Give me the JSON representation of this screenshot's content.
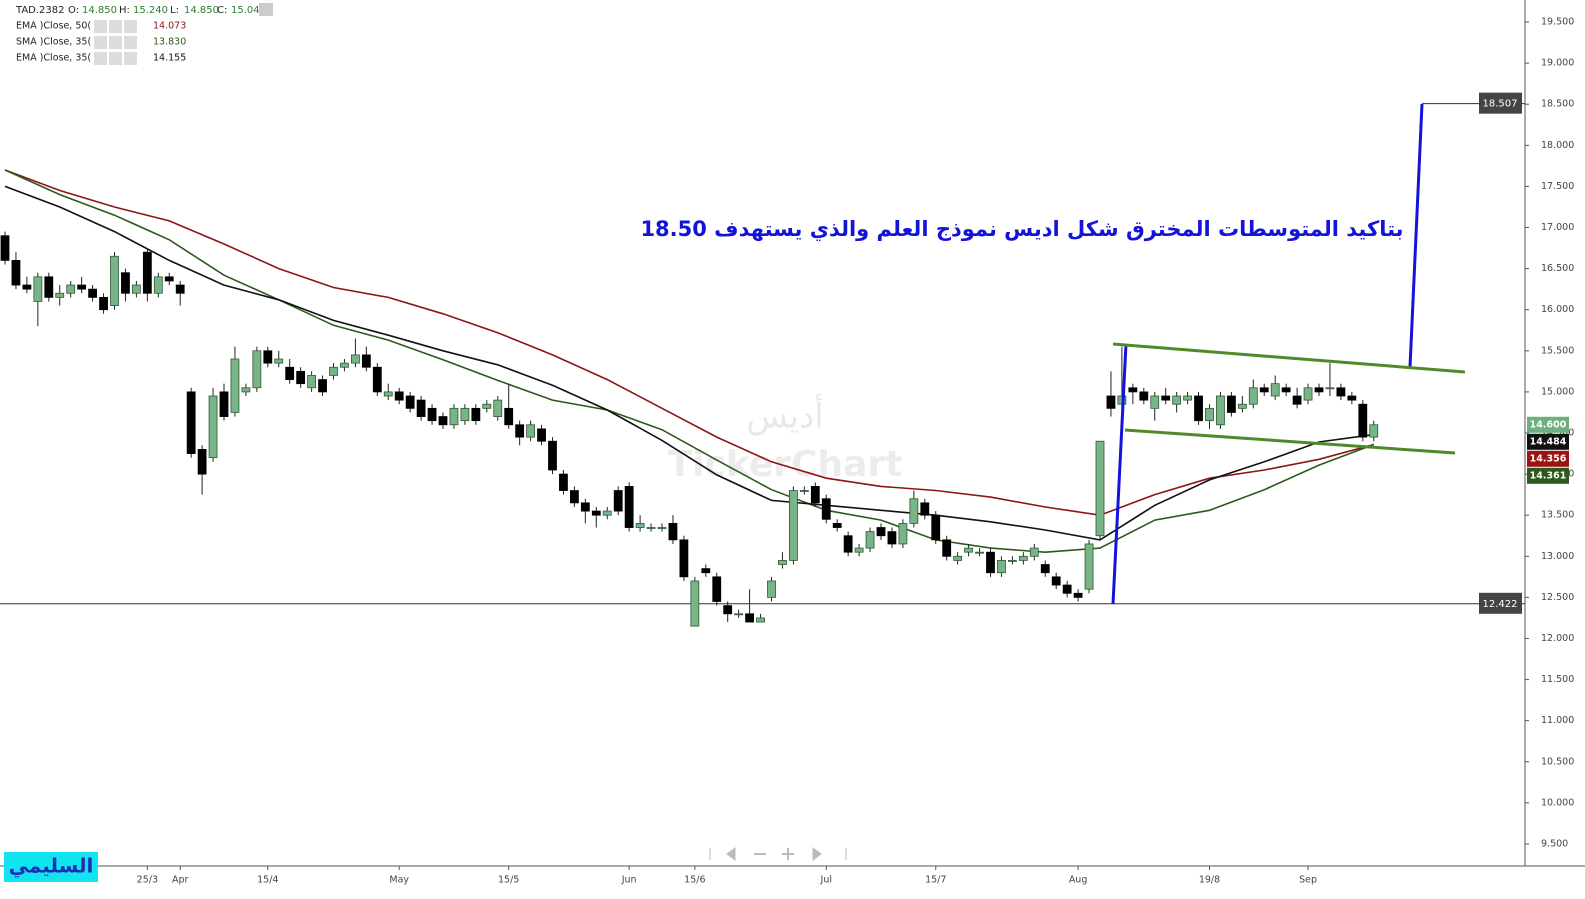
{
  "header": {
    "symbol": "TAD.2382",
    "fields": [
      {
        "label": "O:",
        "value": "14.850"
      },
      {
        "label": "H:",
        "value": "15.240"
      },
      {
        "label": "L:",
        "value": "14.850"
      },
      {
        "label": "C:",
        "value": "15.040"
      }
    ]
  },
  "chart_data": {
    "type": "candlestick",
    "annotation": "بتاكيد المتوسطات المخترق شكل اديس نموذج العلم والذي يستهدف 18.50",
    "annotation_color": "#1414d8",
    "watermark": [
      "أديس",
      "TickerChart"
    ],
    "signature": "السليمي",
    "up_color": "#78b487",
    "down_color": "#000000",
    "categories": [
      null,
      null,
      null,
      null,
      null,
      null,
      null,
      null,
      null,
      null,
      null,
      null,
      null,
      "25/3",
      null,
      null,
      "Apr",
      null,
      null,
      null,
      null,
      null,
      null,
      null,
      "15/4",
      null,
      null,
      null,
      null,
      null,
      null,
      null,
      null,
      null,
      null,
      null,
      "May",
      null,
      null,
      null,
      null,
      null,
      null,
      null,
      null,
      null,
      "15/5",
      null,
      null,
      null,
      null,
      null,
      null,
      null,
      null,
      null,
      null,
      "Jun",
      null,
      null,
      null,
      null,
      null,
      "15/6",
      null,
      null,
      null,
      null,
      null,
      null,
      null,
      null,
      null,
      null,
      null,
      "Jul",
      null,
      null,
      null,
      null,
      null,
      null,
      null,
      null,
      null,
      "15/7",
      null,
      null,
      null,
      null,
      null,
      null,
      null,
      null,
      null,
      null,
      null,
      null,
      "Aug",
      null,
      null,
      null,
      null,
      null,
      null,
      null,
      null,
      null,
      null,
      null,
      "19/8",
      null,
      null,
      null,
      null,
      null,
      null,
      null,
      null,
      "Sep",
      null,
      null,
      null,
      null,
      null,
      null
    ],
    "open": [
      16.9,
      16.6,
      16.3,
      16.1,
      16.4,
      16.15,
      16.2,
      16.3,
      16.25,
      16.15,
      16.05,
      16.45,
      16.2,
      16.7,
      16.2,
      16.4,
      16.3,
      15.0,
      14.3,
      14.2,
      15.0,
      14.75,
      15.0,
      15.05,
      15.5,
      15.35,
      15.3,
      15.25,
      15.05,
      15.15,
      15.2,
      15.3,
      15.35,
      15.45,
      15.3,
      14.95,
      15.0,
      14.95,
      14.9,
      14.8,
      14.7,
      14.6,
      14.65,
      14.8,
      14.8,
      14.7,
      14.8,
      14.6,
      14.45,
      14.55,
      14.4,
      14.0,
      13.8,
      13.65,
      13.55,
      13.5,
      13.8,
      13.85,
      13.35,
      13.35,
      13.35,
      13.4,
      13.2,
      12.15,
      12.85,
      12.75,
      12.4,
      12.3,
      12.3,
      12.2,
      12.5,
      12.9,
      12.95,
      13.8,
      13.85,
      13.7,
      13.4,
      13.25,
      13.05,
      13.1,
      13.35,
      13.3,
      13.15,
      13.4,
      13.65,
      13.5,
      13.2,
      12.95,
      13.05,
      13.05,
      13.05,
      12.8,
      12.95,
      12.95,
      13.0,
      12.9,
      12.75,
      12.65,
      12.55,
      12.6,
      13.25,
      14.95,
      14.85,
      15.05,
      15.0,
      14.8,
      14.95,
      14.85,
      14.9,
      14.95,
      14.65,
      14.6,
      14.95,
      14.8,
      14.85,
      15.05,
      14.95,
      15.05,
      14.95,
      14.9,
      15.05,
      15.05,
      15.05,
      14.95,
      14.85,
      14.45
    ],
    "high": [
      16.95,
      16.7,
      16.4,
      16.45,
      16.45,
      16.3,
      16.35,
      16.4,
      16.3,
      16.2,
      16.7,
      16.5,
      16.35,
      16.75,
      16.45,
      16.45,
      16.35,
      15.05,
      14.35,
      15.05,
      15.1,
      15.55,
      15.1,
      15.55,
      15.55,
      15.5,
      15.4,
      15.3,
      15.25,
      15.2,
      15.35,
      15.4,
      15.65,
      15.55,
      15.35,
      15.1,
      15.05,
      15.0,
      14.95,
      14.85,
      14.75,
      14.85,
      14.85,
      14.85,
      14.9,
      14.95,
      15.1,
      14.65,
      14.65,
      14.6,
      14.45,
      14.05,
      13.85,
      13.7,
      13.6,
      13.6,
      13.85,
      13.9,
      13.5,
      13.4,
      13.4,
      13.5,
      13.25,
      12.75,
      12.9,
      12.8,
      12.45,
      12.35,
      12.6,
      12.3,
      12.75,
      13.05,
      13.85,
      13.85,
      13.9,
      13.75,
      13.45,
      13.3,
      13.15,
      13.35,
      13.4,
      13.35,
      13.45,
      13.8,
      13.7,
      13.55,
      13.25,
      13.05,
      13.15,
      13.1,
      13.1,
      13.0,
      13.0,
      13.05,
      13.15,
      12.95,
      12.8,
      12.7,
      12.6,
      13.2,
      14.4,
      15.25,
      15.55,
      15.1,
      15.05,
      15.0,
      15.05,
      15.0,
      15.0,
      15.0,
      14.85,
      15.0,
      15.0,
      14.95,
      15.15,
      15.1,
      15.2,
      15.1,
      15.05,
      15.1,
      15.1,
      15.35,
      15.1,
      15.0,
      14.9,
      14.65
    ],
    "low": [
      16.55,
      16.25,
      16.2,
      15.8,
      16.1,
      16.05,
      16.15,
      16.2,
      16.1,
      15.95,
      16.0,
      16.1,
      16.15,
      16.1,
      16.15,
      16.3,
      16.05,
      14.2,
      13.75,
      14.15,
      14.65,
      14.7,
      14.95,
      15.0,
      15.3,
      15.3,
      15.1,
      15.05,
      15.0,
      14.95,
      15.15,
      15.25,
      15.3,
      15.25,
      14.95,
      14.9,
      14.85,
      14.75,
      14.65,
      14.6,
      14.55,
      14.55,
      14.6,
      14.6,
      14.75,
      14.65,
      14.55,
      14.35,
      14.4,
      14.35,
      14.0,
      13.75,
      13.6,
      13.4,
      13.35,
      13.45,
      13.5,
      13.3,
      13.3,
      13.3,
      13.3,
      13.15,
      12.7,
      12.15,
      12.75,
      12.4,
      12.2,
      12.25,
      12.2,
      12.2,
      12.45,
      12.85,
      12.9,
      13.75,
      13.6,
      13.4,
      13.3,
      13.0,
      13.0,
      13.05,
      13.2,
      13.1,
      13.1,
      13.35,
      13.45,
      13.15,
      12.95,
      12.9,
      13.0,
      13.0,
      12.75,
      12.75,
      12.9,
      12.9,
      12.95,
      12.75,
      12.6,
      12.5,
      12.45,
      12.55,
      13.2,
      14.7,
      14.8,
      14.85,
      14.85,
      14.65,
      14.85,
      14.75,
      14.85,
      14.6,
      14.55,
      14.55,
      14.7,
      14.75,
      14.8,
      14.95,
      14.9,
      14.95,
      14.8,
      14.85,
      14.95,
      14.95,
      14.9,
      14.85,
      14.4,
      14.4
    ],
    "close": [
      16.6,
      16.3,
      16.25,
      16.4,
      16.15,
      16.2,
      16.3,
      16.25,
      16.15,
      16.0,
      16.65,
      16.2,
      16.3,
      16.2,
      16.4,
      16.35,
      16.2,
      14.25,
      14.0,
      14.95,
      14.7,
      15.4,
      15.05,
      15.5,
      15.35,
      15.4,
      15.15,
      15.1,
      15.2,
      15.0,
      15.3,
      15.35,
      15.45,
      15.3,
      15.0,
      15.0,
      14.9,
      14.8,
      14.7,
      14.65,
      14.6,
      14.8,
      14.8,
      14.65,
      14.85,
      14.9,
      14.6,
      14.45,
      14.6,
      14.4,
      14.05,
      13.8,
      13.65,
      13.55,
      13.5,
      13.55,
      13.55,
      13.35,
      13.4,
      13.35,
      13.35,
      13.2,
      12.75,
      12.7,
      12.8,
      12.45,
      12.3,
      12.3,
      12.2,
      12.25,
      12.7,
      12.95,
      13.8,
      13.8,
      13.65,
      13.45,
      13.35,
      13.05,
      13.1,
      13.3,
      13.25,
      13.15,
      13.4,
      13.7,
      13.5,
      13.2,
      13.0,
      13.0,
      13.1,
      13.05,
      12.8,
      12.95,
      12.95,
      13.0,
      13.1,
      12.8,
      12.65,
      12.55,
      12.5,
      13.15,
      14.4,
      14.8,
      14.95,
      15.0,
      14.9,
      14.95,
      14.9,
      14.95,
      14.95,
      14.65,
      14.8,
      14.95,
      14.75,
      14.85,
      15.05,
      15.0,
      15.1,
      15.0,
      14.85,
      15.05,
      15.0,
      15.05,
      14.95,
      14.9,
      14.45,
      14.6
    ],
    "series": [
      {
        "name": "EMA  )Close, 50(",
        "color": "#8b1616",
        "legend_value": "14.073",
        "x": [
          0,
          5,
          10,
          15,
          20,
          25,
          30,
          35,
          40,
          45,
          50,
          55,
          60,
          65,
          70,
          75,
          80,
          85,
          90,
          95,
          100,
          105,
          110,
          115,
          120,
          125
        ],
        "values": [
          17.7,
          17.45,
          17.25,
          17.08,
          16.8,
          16.5,
          16.27,
          16.15,
          15.95,
          15.72,
          15.45,
          15.15,
          14.8,
          14.45,
          14.15,
          13.95,
          13.85,
          13.8,
          13.72,
          13.6,
          13.5,
          13.75,
          13.95,
          14.05,
          14.18,
          14.36
        ]
      },
      {
        "name": "SMA  )Close, 35(",
        "color": "#2d5a1c",
        "legend_value": "13.830",
        "x": [
          0,
          5,
          10,
          15,
          20,
          25,
          30,
          35,
          40,
          45,
          50,
          55,
          60,
          65,
          70,
          75,
          80,
          85,
          90,
          95,
          100,
          105,
          110,
          115,
          120,
          125
        ],
        "values": [
          17.7,
          17.4,
          17.15,
          16.85,
          16.42,
          16.12,
          15.81,
          15.63,
          15.39,
          15.14,
          14.9,
          14.78,
          14.54,
          14.17,
          13.81,
          13.56,
          13.44,
          13.2,
          13.1,
          13.05,
          13.1,
          13.44,
          13.56,
          13.81,
          14.11,
          14.36
        ]
      },
      {
        "name": "EMA  )Close, 35(",
        "color": "#111111",
        "legend_value": "14.155",
        "x": [
          0,
          5,
          10,
          15,
          20,
          25,
          30,
          35,
          40,
          45,
          50,
          55,
          60,
          65,
          70,
          75,
          80,
          85,
          90,
          95,
          100,
          105,
          110,
          115,
          120,
          125
        ],
        "values": [
          17.5,
          17.25,
          16.95,
          16.6,
          16.3,
          16.12,
          15.87,
          15.69,
          15.5,
          15.33,
          15.08,
          14.78,
          14.41,
          13.99,
          13.68,
          13.62,
          13.56,
          13.5,
          13.42,
          13.32,
          13.2,
          13.62,
          13.93,
          14.15,
          14.39,
          14.48
        ]
      }
    ],
    "price_tags": [
      {
        "value": 14.6,
        "label": "14.600",
        "color": "#6fae7e"
      },
      {
        "value": 14.484,
        "label": "14.484",
        "color": "#111111"
      },
      {
        "value": 14.356,
        "label": "14.356",
        "color": "#9b1414"
      },
      {
        "value": 14.361,
        "label": "14.361",
        "color": "#2d5a1c"
      }
    ],
    "levels": [
      12.422,
      18.507
    ],
    "ylim": [
      9.232,
      19.768
    ],
    "yticks": [
      {
        "value": 9.5,
        "label": "9.500"
      },
      {
        "value": 10,
        "label": "10.000"
      },
      {
        "value": 10.5,
        "label": "10.500"
      },
      {
        "value": 11,
        "label": "11.000"
      },
      {
        "value": 11.5,
        "label": "11.500"
      },
      {
        "value": 12,
        "label": "12.000"
      },
      {
        "value": 12.5,
        "label": "12.500"
      },
      {
        "value": 13,
        "label": "13.000"
      },
      {
        "value": 13.5,
        "label": "13.500"
      },
      {
        "value": 14,
        "label": "14.000"
      },
      {
        "value": 14.5,
        "label": "14.500"
      },
      {
        "value": 15,
        "label": "15.000"
      },
      {
        "value": 15.5,
        "label": "15.500"
      },
      {
        "value": 16,
        "label": "16.000"
      },
      {
        "value": 16.5,
        "label": "16.500"
      },
      {
        "value": 17,
        "label": "17.000"
      },
      {
        "value": 17.5,
        "label": "17.500"
      },
      {
        "value": 18,
        "label": "18.000"
      },
      {
        "value": 18.5,
        "label": "18.500"
      },
      {
        "value": 19,
        "label": "19.000"
      },
      {
        "value": 19.5,
        "label": "19.500"
      }
    ],
    "grid": false
  }
}
